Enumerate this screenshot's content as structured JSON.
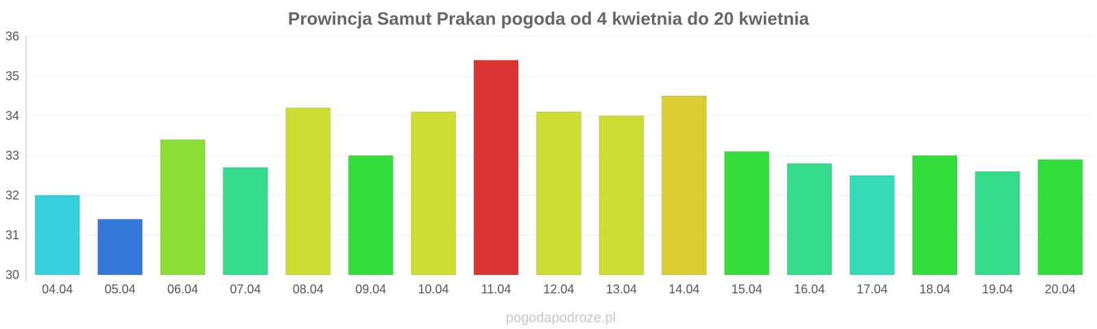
{
  "chart_data": {
    "type": "bar",
    "title": "Prowincja Samut Prakan pogoda od 4 kwietnia do 20 kwietnia",
    "xlabel": "",
    "ylabel": "",
    "ylim": [
      30,
      36
    ],
    "yticks": [
      30,
      31,
      32,
      33,
      34,
      35,
      36
    ],
    "grid": true,
    "categories": [
      "04.04",
      "05.04",
      "06.04",
      "07.04",
      "08.04",
      "09.04",
      "10.04",
      "11.04",
      "12.04",
      "13.04",
      "14.04",
      "15.04",
      "16.04",
      "17.04",
      "18.04",
      "19.04",
      "20.04"
    ],
    "values": [
      32.0,
      31.4,
      33.4,
      32.7,
      34.2,
      33.0,
      34.1,
      35.4,
      34.1,
      34.0,
      34.5,
      33.1,
      32.8,
      32.5,
      33.0,
      32.6,
      32.9
    ],
    "colors": [
      "#36d1dc",
      "#3478db",
      "#8ade35",
      "#33db8a",
      "#ccdd33",
      "#33dd3a",
      "#ccdd33",
      "#dc3535",
      "#ccdd33",
      "#ccdd33",
      "#dccd35",
      "#33dd3a",
      "#33db8a",
      "#33dbb8",
      "#33dd3a",
      "#33db8a",
      "#33dd3a"
    ]
  },
  "watermark": "pogodapodroze.pl"
}
